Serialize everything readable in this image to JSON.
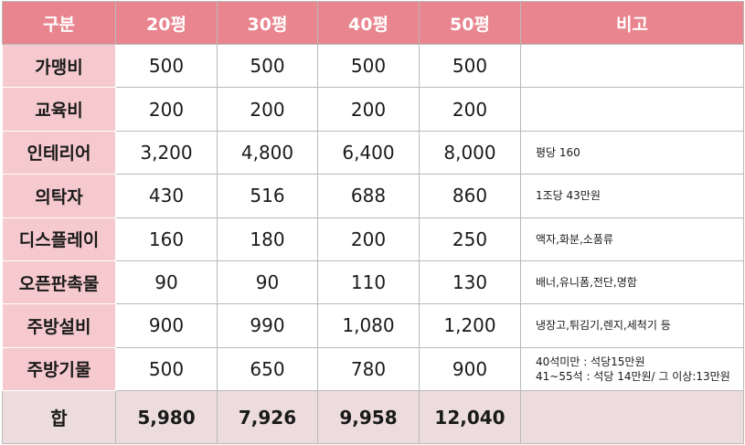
{
  "header": {
    "category": "구분",
    "col20": "20평",
    "col30": "30평",
    "col40": "40평",
    "col50": "50평",
    "note": "비고"
  },
  "rows": [
    {
      "label": "가맹비",
      "v20": "500",
      "v30": "500",
      "v40": "500",
      "v50": "500",
      "note": ""
    },
    {
      "label": "교육비",
      "v20": "200",
      "v30": "200",
      "v40": "200",
      "v50": "200",
      "note": ""
    },
    {
      "label": "인테리어",
      "v20": "3,200",
      "v30": "4,800",
      "v40": "6,400",
      "v50": "8,000",
      "note": "평당 160"
    },
    {
      "label": "의탁자",
      "v20": "430",
      "v30": "516",
      "v40": "688",
      "v50": "860",
      "note": "1조당 43만원"
    },
    {
      "label": "디스플레이",
      "v20": "160",
      "v30": "180",
      "v40": "200",
      "v50": "250",
      "note": "액자,화분,소품류"
    },
    {
      "label": "오픈판촉물",
      "v20": "90",
      "v30": "90",
      "v40": "110",
      "v50": "130",
      "note": "배너,유니폼,전단,명함"
    },
    {
      "label": "주방설비",
      "v20": "900",
      "v30": "990",
      "v40": "1,080",
      "v50": "1,200",
      "note": "냉장고,튀김기,렌지,세척기 등"
    },
    {
      "label": "주방기물",
      "v20": "500",
      "v30": "650",
      "v40": "780",
      "v50": "900",
      "note_line1": "40석미만 : 석당15만원",
      "note_line2": "41~55석 : 석당 14만원/ 그 이상:13만원"
    }
  ],
  "total": {
    "label": "합",
    "v20": "5,980",
    "v30": "7,926",
    "v40": "9,958",
    "v50": "12,040",
    "note": ""
  }
}
